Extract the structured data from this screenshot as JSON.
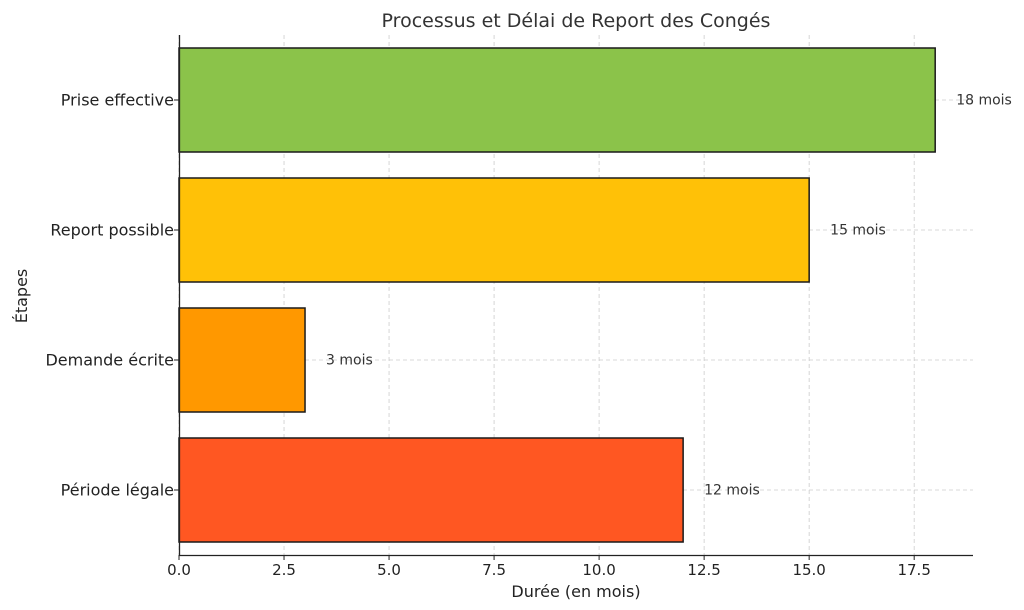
{
  "chart_data": {
    "type": "bar",
    "orientation": "horizontal",
    "title": "Processus et Délai de Report des Congés",
    "xlabel": "Durée (en mois)",
    "ylabel": "Étapes",
    "categories": [
      "Période légale",
      "Demande écrite",
      "Report possible",
      "Prise effective"
    ],
    "values": [
      12,
      3,
      15,
      18
    ],
    "data_labels": [
      "12 mois",
      "3 mois",
      "15 mois",
      "18 mois"
    ],
    "colors": [
      "#FF5722",
      "#FF9800",
      "#FFC107",
      "#8BC34A"
    ],
    "xlim": [
      0,
      18.9
    ],
    "xticks": [
      0,
      2.5,
      5,
      7.5,
      10,
      12.5,
      15,
      17.5
    ],
    "xtick_labels": [
      "0.0",
      "2.5",
      "5.0",
      "7.5",
      "10.0",
      "12.5",
      "15.0",
      "17.5"
    ],
    "grid": true,
    "legend": "none"
  }
}
